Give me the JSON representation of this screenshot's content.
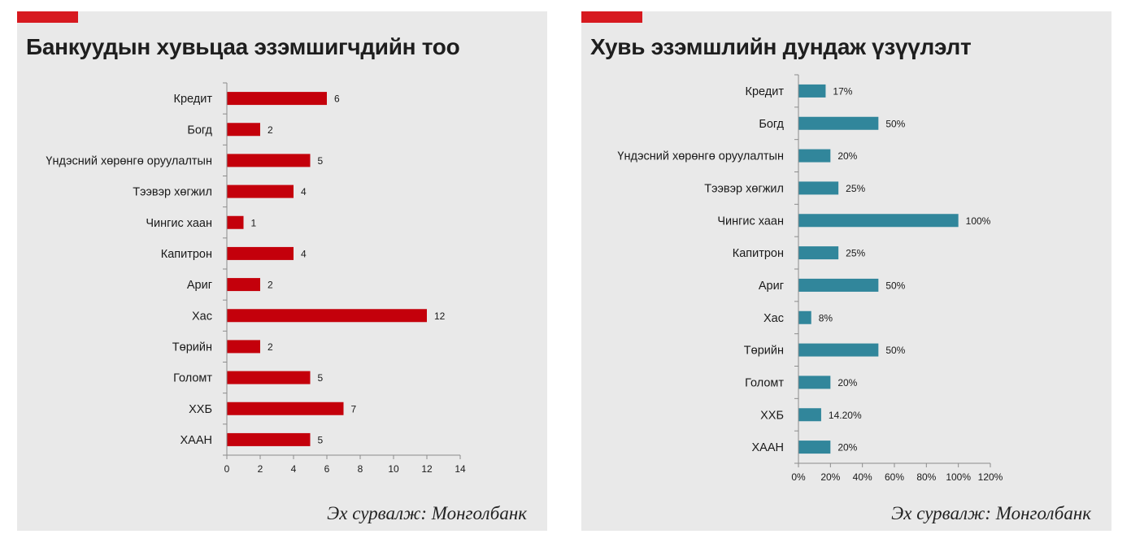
{
  "colors": {
    "accent": "#d7191f",
    "bar_left": "#c4000b",
    "bar_right": "#31869b",
    "axis": "#8c8c8c",
    "panel": "#e9e9e9"
  },
  "chart_data": [
    {
      "type": "bar",
      "orientation": "horizontal",
      "title": "Банкуудын хувьцаа эзэмшигчдийн тоо",
      "categories": [
        "Кредит",
        "Богд",
        "Үндэсний хөрөнгө оруулалтын",
        "Тээвэр хөгжил",
        "Чингис хаан",
        "Капитрон",
        "Ариг",
        "Хас",
        "Төрийн",
        "Голомт",
        "ХХБ",
        "ХААН"
      ],
      "values": [
        6,
        2,
        5,
        4,
        1,
        4,
        2,
        12,
        2,
        5,
        7,
        5
      ],
      "data_labels": [
        "6",
        "2",
        "5",
        "4",
        "1",
        "4",
        "2",
        "12",
        "2",
        "5",
        "7",
        "5"
      ],
      "xlim": [
        0,
        14
      ],
      "xticks": [
        "0",
        "2",
        "4",
        "6",
        "8",
        "10",
        "12",
        "14"
      ],
      "xtick_values": [
        0,
        2,
        4,
        6,
        8,
        10,
        12,
        14
      ],
      "grid": false,
      "legend": "none",
      "source": "Эх сурвалж: Монголбанк"
    },
    {
      "type": "bar",
      "orientation": "horizontal",
      "title": "Хувь эзэмшлийн дундаж үзүүлэлт",
      "categories": [
        "Кредит",
        "Богд",
        "Үндэсний хөрөнгө оруулалтын",
        "Тээвэр хөгжил",
        "Чингис хаан",
        "Капитрон",
        "Ариг",
        "Хас",
        "Төрийн",
        "Голомт",
        "ХХБ",
        "ХААН"
      ],
      "values": [
        17,
        50,
        20,
        25,
        100,
        25,
        50,
        8,
        50,
        20,
        14.2,
        20
      ],
      "data_labels": [
        "17%",
        "50%",
        "20%",
        "25%",
        "100%",
        "25%",
        "50%",
        "8%",
        "50%",
        "20%",
        "14.20%",
        "20%"
      ],
      "xlim": [
        0,
        120
      ],
      "xticks": [
        "0%",
        "20%",
        "40%",
        "60%",
        "80%",
        "100%",
        "120%"
      ],
      "xtick_values": [
        0,
        20,
        40,
        60,
        80,
        100,
        120
      ],
      "unit": "%",
      "grid": false,
      "legend": "none",
      "source": "Эх сурвалж: Монголбанк"
    }
  ]
}
